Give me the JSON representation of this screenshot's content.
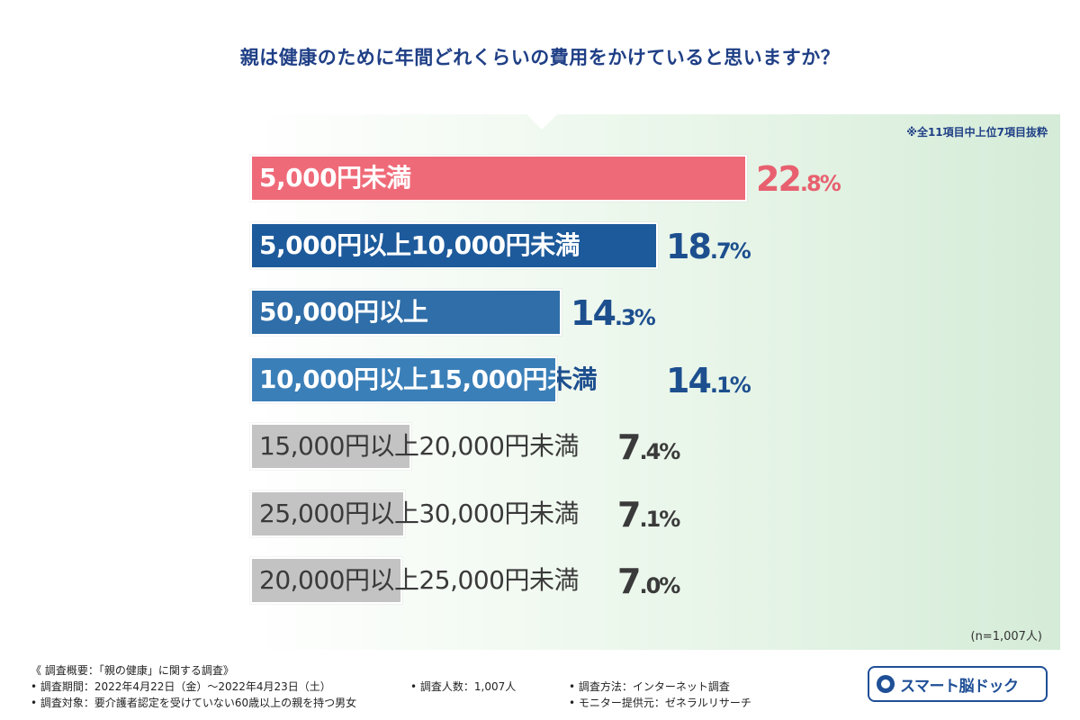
{
  "header": {
    "title": "親は健康のために年間どれくらいの費用をかけていると思いますか？"
  },
  "note": "※全11項目中上位7項目抜粋",
  "sample_size": "(n=1,007人)",
  "colors": {
    "pink": "#ef6a78",
    "navy": "#1d5a9b",
    "blue": "#2f6ea8",
    "steel": "#3b7fb8",
    "gray": "#c3c3c3",
    "pink_text": "#e8606f",
    "blue_text": "#1d4f8f",
    "gray_text": "#3a3a3a"
  },
  "chart_data": {
    "type": "bar",
    "orientation": "horizontal",
    "title": "親は健康のために年間どれくらいの費用をかけていると思いますか？",
    "unit": "%",
    "categories": [
      "5,000円未満",
      "5,000円以上10,000円未満",
      "50,000円以上",
      "10,000円以上15,000円未満",
      "15,000円以上20,000円未満",
      "25,000円以上30,000円未満",
      "20,000円以上25,000円未満"
    ],
    "values": [
      22.8,
      18.7,
      14.3,
      14.1,
      7.4,
      7.1,
      7.0
    ],
    "value_labels": [
      {
        "int": "22",
        "dec": ".8%"
      },
      {
        "int": "18",
        "dec": ".7%"
      },
      {
        "int": "14",
        "dec": ".3%"
      },
      {
        "int": "14",
        "dec": ".1%"
      },
      {
        "int": "7",
        "dec": ".4%"
      },
      {
        "int": "7",
        "dec": ".1%"
      },
      {
        "int": "7",
        "dec": ".0%"
      }
    ],
    "bar_colors": [
      "#ef6a78",
      "#1d5a9b",
      "#2f6ea8",
      "#3b7fb8",
      "#c3c3c3",
      "#c3c3c3",
      "#c3c3c3"
    ],
    "xlim": [
      0,
      22.8
    ]
  },
  "footer": {
    "overview": "《 調査概要：「親の健康」に関する調査》",
    "period": "• 調査期間：2022年4月22日（金）～2022年4月23日（土）",
    "respondents": "• 調査人数：1,007人",
    "method": "• 調査方法：インターネット調査",
    "target": "• 調査対象：要介護者認定を受けていない60歳以上の親を持つ男女",
    "provider": "• モニター提供元：ゼネラルリサーチ"
  },
  "logo": {
    "icon": "brain-dock-icon",
    "text": "スマート脳ドック"
  }
}
